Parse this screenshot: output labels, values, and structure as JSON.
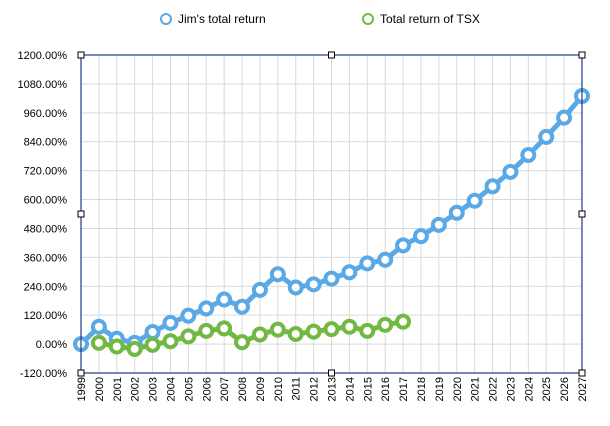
{
  "chart_data": {
    "type": "line",
    "title": "",
    "xlabel": "",
    "ylabel": "",
    "x": [
      1999,
      2000,
      2001,
      2002,
      2003,
      2004,
      2005,
      2006,
      2007,
      2008,
      2009,
      2010,
      2011,
      2012,
      2013,
      2014,
      2015,
      2016,
      2017,
      2018,
      2019,
      2020,
      2021,
      2022,
      2023,
      2024,
      2025,
      2026,
      2027
    ],
    "xlim": [
      1999,
      2027
    ],
    "ylim": [
      -120,
      1200
    ],
    "yticks": [
      -120,
      0,
      120,
      240,
      360,
      480,
      600,
      720,
      840,
      960,
      1080,
      1200
    ],
    "ytick_labels": [
      "-120.00%",
      "0.00%",
      "120.00%",
      "240.00%",
      "360.00%",
      "480.00%",
      "600.00%",
      "720.00%",
      "840.00%",
      "960.00%",
      "1080.00%",
      "1200.00%"
    ],
    "xtick_labels": [
      "1999",
      "2000",
      "2001",
      "2002",
      "2003",
      "2004",
      "2005",
      "2006",
      "2007",
      "2008",
      "2009",
      "2010",
      "2011",
      "2012",
      "2013",
      "2014",
      "2015",
      "2016",
      "2017",
      "2018",
      "2019",
      "2020",
      "2021",
      "2022",
      "2023",
      "2024",
      "2025",
      "2026",
      "2027"
    ],
    "grid": true,
    "legend_position": "top",
    "series": [
      {
        "name": "Jim's total return",
        "color": "#5aa9e6",
        "values": [
          0,
          72,
          22,
          5,
          50,
          88,
          118,
          148,
          185,
          155,
          225,
          290,
          235,
          248,
          272,
          298,
          335,
          350,
          410,
          448,
          495,
          545,
          595,
          655,
          715,
          785,
          860,
          940,
          1030
        ]
      },
      {
        "name": "Total return of TSX",
        "color": "#72b943",
        "values": [
          null,
          5,
          -10,
          -20,
          -3,
          12,
          32,
          55,
          65,
          8,
          40,
          60,
          42,
          52,
          62,
          72,
          55,
          80,
          93,
          null,
          null,
          null,
          null,
          null,
          null,
          null,
          null,
          null,
          null
        ]
      }
    ]
  }
}
